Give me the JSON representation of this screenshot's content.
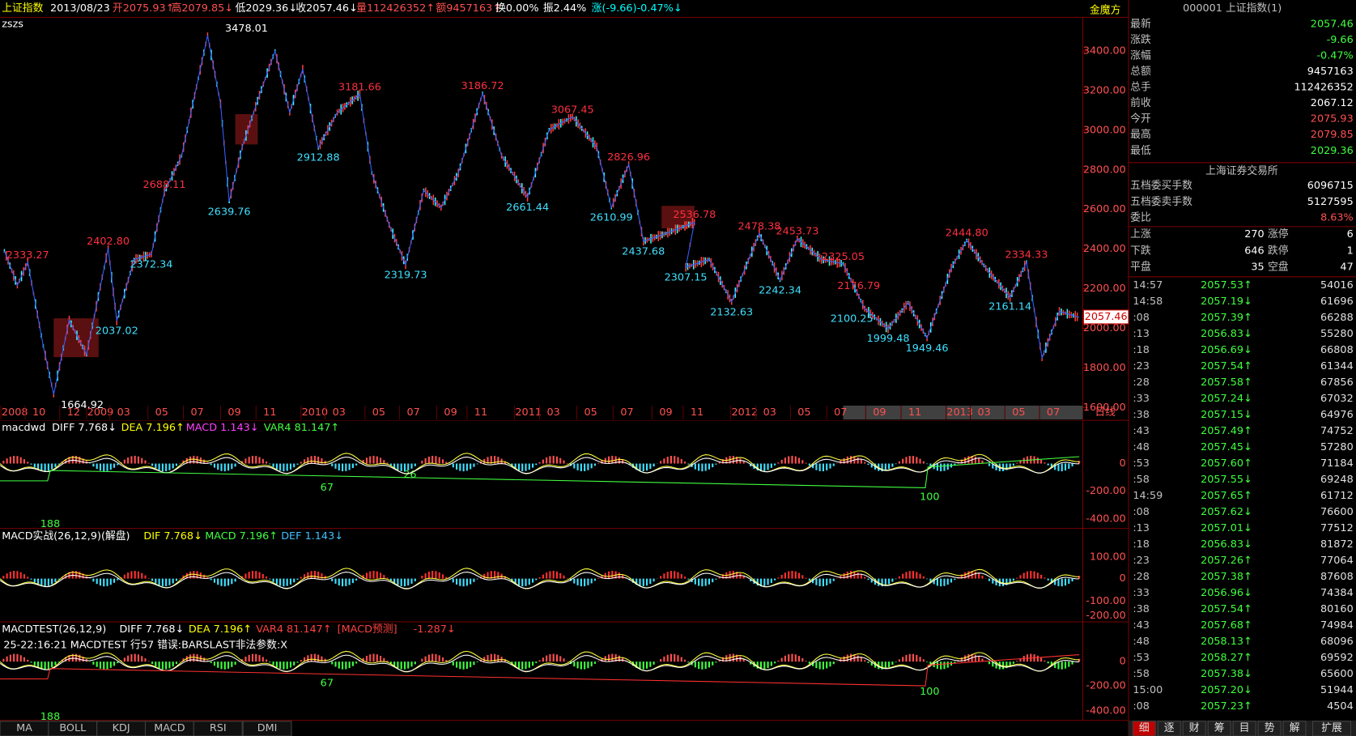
{
  "header": {
    "items": [
      "上证指数",
      "2013/08/23",
      "开2075.93↑",
      "高2079.85↓",
      "低2029.36↓",
      "收2057.46↓",
      "量112426352↑",
      "额9457163↑",
      "换0.00%",
      "振2.44%",
      "涨(-9.66)-0.47%↓"
    ],
    "sub": "zszs",
    "brand": "金魔方"
  },
  "main_chart": {
    "price_ticks": [
      "3400.00",
      "3200.00",
      "3000.00",
      "2800.00",
      "2600.00",
      "2400.00",
      "2200.00",
      "2000.00",
      "1800.00",
      "1600.00"
    ],
    "last_price": "2057.46",
    "time_labels": [
      "2008",
      "10",
      "12",
      "2009",
      "03",
      "05",
      "07",
      "09",
      "11",
      "2010",
      "03",
      "05",
      "07",
      "09",
      "11",
      "2011",
      "03",
      "05",
      "07",
      "09",
      "11",
      "2012",
      "03",
      "05",
      "07",
      "09",
      "11",
      "2013",
      "03",
      "05",
      "07"
    ],
    "period": "日线",
    "highs": [
      "2333.27",
      "2402.80",
      "2688.11",
      "3478.01",
      "3181.66",
      "3186.72",
      "3067.45",
      "2826.96",
      "2536.78",
      "2478.38",
      "2453.73",
      "2325.05",
      "2176.79",
      "2444.80",
      "2334.33"
    ],
    "lows": [
      "1664.92",
      "2037.02",
      "2372.34",
      "2639.76",
      "2912.88",
      "2319.73",
      "2661.44",
      "2610.99",
      "2437.68",
      "2307.15",
      "2132.63",
      "2242.34",
      "2100.25",
      "1999.48",
      "1949.46",
      "2161.14"
    ]
  },
  "panes": [
    {
      "headers": [
        "macdwd",
        "DIFF 7.768↓",
        "DEA 7.196↑",
        "MACD 1.143↓",
        "VAR4 81.147↑"
      ],
      "axis": [
        "0",
        "-200.00",
        "-400.00"
      ],
      "labels": [
        "188",
        "67",
        "26",
        "100"
      ]
    },
    {
      "headers": [
        "MACD实战(26,12,9)(解盘)",
        "DIF 7.768↓",
        "MACD 7.196↑",
        "DEF 1.143↓"
      ],
      "axis": [
        "100.00",
        "0",
        "-100.00",
        "-200.00"
      ],
      "labels": []
    },
    {
      "headers": [
        "MACDTEST(26,12,9)",
        "DIFF 7.768↓",
        "DEA 7.196↑",
        "VAR4 81.147↑",
        "[MACD预测]",
        "-1.287↓"
      ],
      "error": "25-22:16:21  MACDTEST 行57 错误:BARSLAST非法参数:X",
      "axis": [
        "0",
        "-200.00",
        "-400.00"
      ],
      "labels": [
        "188",
        "67",
        "100"
      ]
    }
  ],
  "tabs": [
    "MA",
    "BOLL",
    "KDJ",
    "MACD",
    "RSI",
    "DMI"
  ],
  "quote": {
    "title": "000001 上证指数(1)",
    "rows": [
      [
        "最新",
        "2057.46"
      ],
      [
        "涨跌",
        "-9.66"
      ],
      [
        "涨幅",
        "-0.47%"
      ],
      [
        "总额",
        "9457163"
      ],
      [
        "总手",
        "112426352"
      ],
      [
        "前收",
        "2067.12"
      ],
      [
        "今开",
        "2075.93"
      ],
      [
        "最高",
        "2079.85"
      ],
      [
        "最低",
        "2029.36"
      ]
    ],
    "exchange": "上海证券交易所",
    "orders": [
      [
        "五档委买手数",
        "6096715"
      ],
      [
        "五档委卖手数",
        "5127595"
      ],
      [
        "委比",
        "8.63%"
      ]
    ],
    "breadth": [
      [
        "上涨",
        "270",
        "涨停",
        "6"
      ],
      [
        "下跌",
        "646",
        "跌停",
        "1"
      ],
      [
        "平盘",
        "35",
        "空盘",
        "47"
      ]
    ]
  },
  "trades": [
    [
      "14:57",
      "2057.53↑",
      "54016"
    ],
    [
      "14:58",
      "2057.19↓",
      "61696"
    ],
    [
      ":08",
      "2057.39↑",
      "66288"
    ],
    [
      ":13",
      "2056.83↓",
      "55280"
    ],
    [
      ":18",
      "2056.69↓",
      "66808"
    ],
    [
      ":23",
      "2057.54↑",
      "61344"
    ],
    [
      ":28",
      "2057.58↑",
      "67856"
    ],
    [
      ":33",
      "2057.24↓",
      "67032"
    ],
    [
      ":38",
      "2057.15↓",
      "64976"
    ],
    [
      ":43",
      "2057.49↑",
      "74752"
    ],
    [
      ":48",
      "2057.45↓",
      "57280"
    ],
    [
      ":53",
      "2057.60↑",
      "71184"
    ],
    [
      ":58",
      "2057.55↓",
      "69248"
    ],
    [
      "14:59",
      "2057.65↑",
      "61712"
    ],
    [
      ":08",
      "2057.62↓",
      "76600"
    ],
    [
      ":13",
      "2057.01↓",
      "77512"
    ],
    [
      ":18",
      "2056.83↓",
      "81872"
    ],
    [
      ":23",
      "2057.26↑",
      "77064"
    ],
    [
      ":28",
      "2057.38↑",
      "87608"
    ],
    [
      ":33",
      "2056.96↓",
      "74384"
    ],
    [
      ":38",
      "2057.54↑",
      "80160"
    ],
    [
      ":43",
      "2057.68↑",
      "74984"
    ],
    [
      ":48",
      "2058.13↑",
      "68096"
    ],
    [
      ":53",
      "2058.27↑",
      "69592"
    ],
    [
      ":58",
      "2057.38↓",
      "65600"
    ],
    [
      "15:00",
      "2057.20↓",
      "51944"
    ],
    [
      ":08",
      "2057.23↑",
      "4504"
    ]
  ],
  "side_tabs": [
    "细",
    "逐",
    "财",
    "筹",
    "目",
    "势",
    "解",
    "扩展"
  ]
}
